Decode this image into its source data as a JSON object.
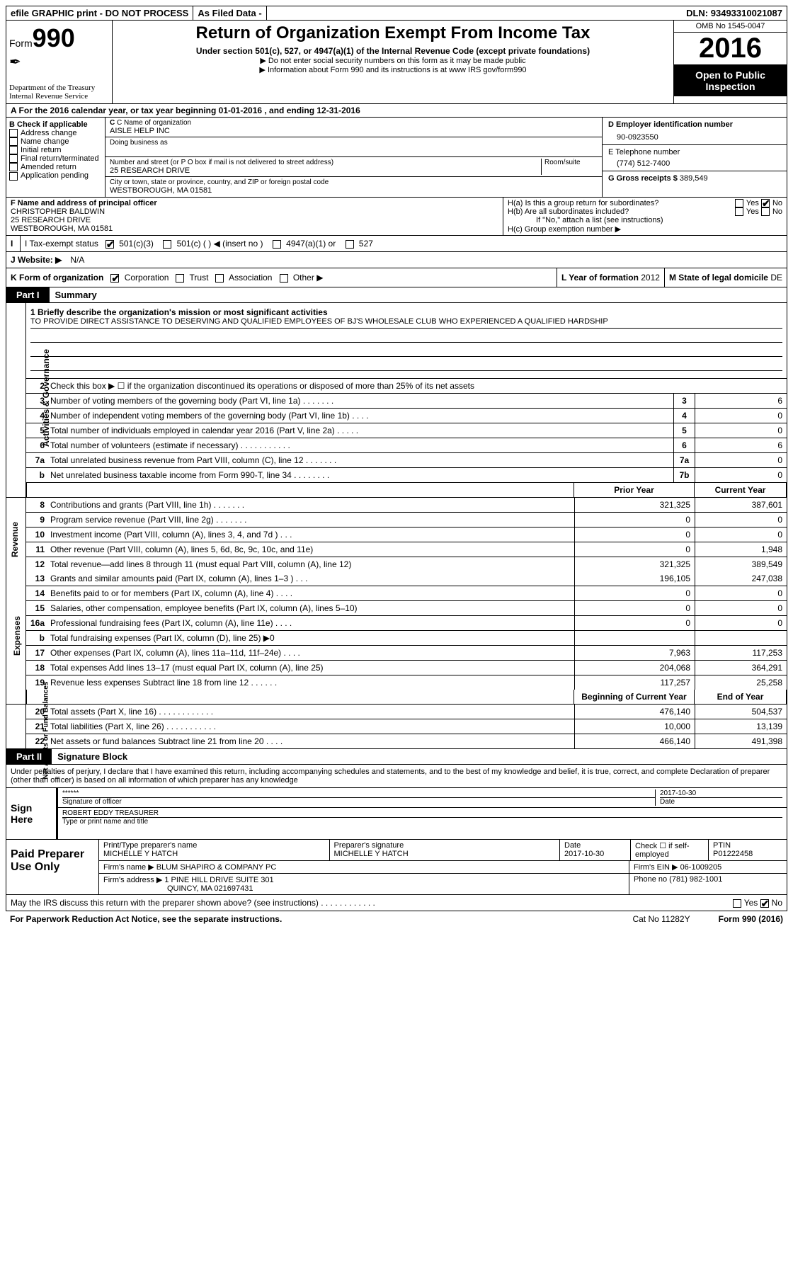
{
  "topbar": {
    "efile": "efile GRAPHIC print - DO NOT PROCESS",
    "asfiled": "As Filed Data -",
    "dln_lbl": "DLN:",
    "dln": "93493310021087"
  },
  "header": {
    "form_lbl": "Form",
    "form_no": "990",
    "dept1": "Department of the Treasury",
    "dept2": "Internal Revenue Service",
    "title": "Return of Organization Exempt From Income Tax",
    "sub": "Under section 501(c), 527, or 4947(a)(1) of the Internal Revenue Code (except private foundations)",
    "note1": "▶ Do not enter social security numbers on this form as it may be made public",
    "note2": "▶ Information about Form 990 and its instructions is at ",
    "note2_link": "www IRS gov/form990",
    "omb": "OMB No  1545-0047",
    "year": "2016",
    "inspect": "Open to Public Inspection"
  },
  "rowA": "A   For the 2016 calendar year, or tax year beginning 01-01-2016   , and ending 12-31-2016",
  "B": {
    "lbl": "B Check if applicable",
    "opts": [
      "Address change",
      "Name change",
      "Initial return",
      "Final return/terminated",
      "Amended return",
      "Application pending"
    ]
  },
  "C": {
    "name_lbl": "C Name of organization",
    "name": "AISLE HELP INC",
    "dba_lbl": "Doing business as",
    "dba": "",
    "addr_lbl": "Number and street (or P O  box if mail is not delivered to street address)",
    "room_lbl": "Room/suite",
    "addr": "25 RESEARCH DRIVE",
    "city_lbl": "City or town, state or province, country, and ZIP or foreign postal code",
    "city": "WESTBOROUGH, MA  01581"
  },
  "D": {
    "ein_lbl": "D Employer identification number",
    "ein": "90-0923550",
    "tel_lbl": "E Telephone number",
    "tel": "(774) 512-7400",
    "gross_lbl": "G Gross receipts $",
    "gross": "389,549"
  },
  "F": {
    "lbl": "F  Name and address of principal officer",
    "name": "CHRISTOPHER BALDWIN",
    "addr1": "25 RESEARCH DRIVE",
    "addr2": "WESTBOROUGH, MA  01581"
  },
  "H": {
    "a": "H(a)  Is this a group return for subordinates?",
    "b": "H(b)  Are all subordinates included?",
    "bnote": "If \"No,\" attach a list  (see instructions)",
    "c": "H(c)  Group exemption number ▶"
  },
  "I": {
    "lbl": "I   Tax-exempt status",
    "opts": [
      "501(c)(3)",
      "501(c) (   ) ◀ (insert no )",
      "4947(a)(1) or",
      "527"
    ]
  },
  "J": {
    "lbl": "J   Website: ▶",
    "val": "N/A"
  },
  "K": {
    "lbl": "K Form of organization",
    "opts": [
      "Corporation",
      "Trust",
      "Association",
      "Other ▶"
    ]
  },
  "L": {
    "lbl": "L Year of formation",
    "val": "2012"
  },
  "M": {
    "lbl": "M State of legal domicile",
    "val": "DE"
  },
  "part1": {
    "lbl": "Part I",
    "ttl": "Summary"
  },
  "vtabs": {
    "gov": "Activities & Governance",
    "rev": "Revenue",
    "exp": "Expenses",
    "net": "Net Assets or\nFund Balances"
  },
  "q1": {
    "lbl": "1  Briefly describe the organization's mission or most significant activities",
    "text": "TO PROVIDE DIRECT ASSISTANCE TO DESERVING AND QUALIFIED EMPLOYEES OF BJ'S WHOLESALE CLUB WHO EXPERIENCED A QUALIFIED HARDSHIP"
  },
  "q2": "Check this box ▶ ☐  if the organization discontinued its operations or disposed of more than 25% of its net assets",
  "gov_lines": [
    {
      "n": "3",
      "t": "Number of voting members of the governing body (Part VI, line 1a)   .     .     .     .     .     .     .",
      "box": "3",
      "v": "6"
    },
    {
      "n": "4",
      "t": "Number of independent voting members of the governing body (Part VI, line 1b)   .     .     .     .",
      "box": "4",
      "v": "0"
    },
    {
      "n": "5",
      "t": "Total number of individuals employed in calendar year 2016 (Part V, line 2a)   .     .     .     .     .",
      "box": "5",
      "v": "0"
    },
    {
      "n": "6",
      "t": "Total number of volunteers (estimate if necessary)     .     .     .     .     .     .     .     .     .     .     .",
      "box": "6",
      "v": "6"
    },
    {
      "n": "7a",
      "t": "Total unrelated business revenue from Part VIII, column (C), line 12   .     .     .     .     .     .     .",
      "box": "7a",
      "v": "0"
    },
    {
      "n": "b",
      "t": "Net unrelated business taxable income from Form 990-T, line 34   .     .     .     .     .     .     .     .",
      "box": "7b",
      "v": "0"
    }
  ],
  "col_hdr": {
    "py": "Prior Year",
    "cy": "Current Year"
  },
  "rev_lines": [
    {
      "n": "8",
      "t": "Contributions and grants (Part VIII, line 1h)    .     .     .     .     .     .     .",
      "py": "321,325",
      "cy": "387,601"
    },
    {
      "n": "9",
      "t": "Program service revenue (Part VIII, line 2g)   .     .     .     .     .     .     .",
      "py": "0",
      "cy": "0"
    },
    {
      "n": "10",
      "t": "Investment income (Part VIII, column (A), lines 3, 4, and 7d )   .     .     .",
      "py": "0",
      "cy": "0"
    },
    {
      "n": "11",
      "t": "Other revenue (Part VIII, column (A), lines 5, 6d, 8c, 9c, 10c, and 11e)",
      "py": "0",
      "cy": "1,948"
    },
    {
      "n": "12",
      "t": "Total revenue—add lines 8 through 11 (must equal Part VIII, column (A), line 12)",
      "py": "321,325",
      "cy": "389,549"
    }
  ],
  "exp_lines": [
    {
      "n": "13",
      "t": "Grants and similar amounts paid (Part IX, column (A), lines 1–3 )  .     .     .",
      "py": "196,105",
      "cy": "247,038"
    },
    {
      "n": "14",
      "t": "Benefits paid to or for members (Part IX, column (A), line 4)   .     .     .     .",
      "py": "0",
      "cy": "0"
    },
    {
      "n": "15",
      "t": "Salaries, other compensation, employee benefits (Part IX, column (A), lines 5–10)",
      "py": "0",
      "cy": "0"
    },
    {
      "n": "16a",
      "t": "Professional fundraising fees (Part IX, column (A), line 11e)   .     .     .     .",
      "py": "0",
      "cy": "0"
    },
    {
      "n": "b",
      "t": "Total fundraising expenses (Part IX, column (D), line 25) ▶0",
      "py": "",
      "cy": ""
    },
    {
      "n": "17",
      "t": "Other expenses (Part IX, column (A), lines 11a–11d, 11f–24e)   .     .     .     .",
      "py": "7,963",
      "cy": "117,253"
    },
    {
      "n": "18",
      "t": "Total expenses  Add lines 13–17 (must equal Part IX, column (A), line 25)",
      "py": "204,068",
      "cy": "364,291"
    },
    {
      "n": "19",
      "t": "Revenue less expenses  Subtract line 18 from line 12   .     .     .     .     .     .",
      "py": "117,257",
      "cy": "25,258"
    }
  ],
  "net_hdr": {
    "py": "Beginning of Current Year",
    "cy": "End of Year"
  },
  "net_lines": [
    {
      "n": "20",
      "t": "Total assets (Part X, line 16)   .     .     .     .     .     .     .     .     .     .     .     .",
      "py": "476,140",
      "cy": "504,537"
    },
    {
      "n": "21",
      "t": "Total liabilities (Part X, line 26)  .     .     .     .     .     .     .     .     .     .     .",
      "py": "10,000",
      "cy": "13,139"
    },
    {
      "n": "22",
      "t": "Net assets or fund balances  Subtract line 21 from line 20   .     .     .     .",
      "py": "466,140",
      "cy": "491,398"
    }
  ],
  "part2": {
    "lbl": "Part II",
    "ttl": "Signature Block"
  },
  "sig_intro": "Under penalties of perjury, I declare that I have examined this return, including accompanying schedules and statements, and to the best of my knowledge and belief, it is true, correct, and complete  Declaration of preparer (other than officer) is based on all information of which preparer has any knowledge",
  "sign": {
    "lbl": "Sign Here",
    "stars": "******",
    "sig_lbl": "Signature of officer",
    "date": "2017-10-30",
    "date_lbl": "Date",
    "name": "ROBERT EDDY TREASURER",
    "name_lbl": "Type or print name and title"
  },
  "prep": {
    "lbl": "Paid Preparer Use Only",
    "r1": {
      "c1_lbl": "Print/Type preparer's name",
      "c1": "MICHELLE Y HATCH",
      "c2_lbl": "Preparer's signature",
      "c2": "MICHELLE Y HATCH",
      "c3_lbl": "Date",
      "c3": "2017-10-30",
      "c4": "Check ☐ if self-employed",
      "c5_lbl": "PTIN",
      "c5": "P01222458"
    },
    "r2": {
      "lbl": "Firm's name      ▶",
      "val": "BLUM SHAPIRO & COMPANY PC",
      "ein_lbl": "Firm's EIN ▶",
      "ein": "06-1009205"
    },
    "r3": {
      "lbl": "Firm's address ▶",
      "val1": "1 PINE HILL DRIVE SUITE 301",
      "val2": "QUINCY, MA  021697431",
      "ph_lbl": "Phone no",
      "ph": "(781) 982-1001"
    }
  },
  "footer": {
    "q": "May the IRS discuss this return with the preparer shown above? (see instructions)    .     .     .     .     .     .     .     .     .     .     .     .",
    "yes": "Yes",
    "no": "No"
  },
  "bottom": {
    "l": "For Paperwork Reduction Act Notice, see the separate instructions.",
    "m": "Cat No  11282Y",
    "r": "Form 990 (2016)"
  }
}
